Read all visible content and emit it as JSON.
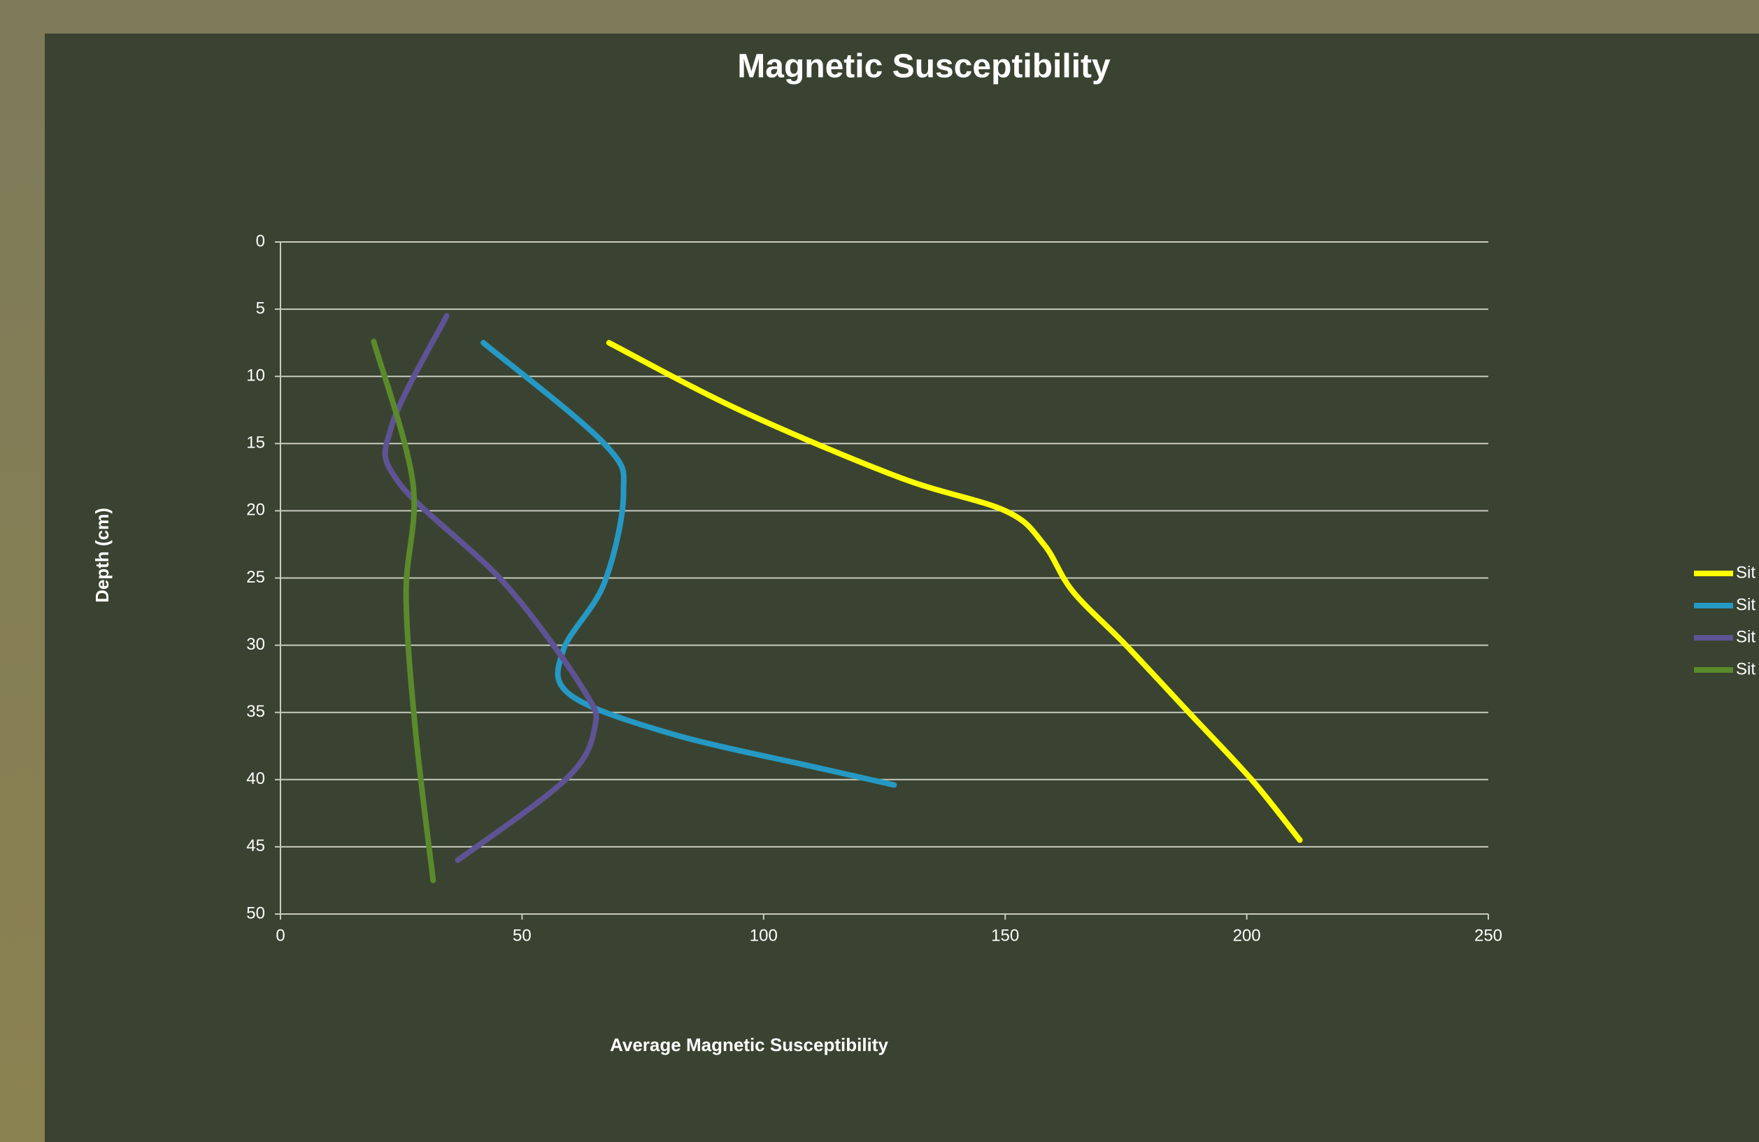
{
  "chart_data": {
    "type": "line",
    "title": "Magnetic Susceptibility",
    "x_label": "Average Magnetic Susceptibility",
    "y_label": "Depth (cm)",
    "xlim": [
      0,
      250
    ],
    "xticks": [
      0,
      50,
      100,
      150,
      200,
      250
    ],
    "ylim": [
      50,
      0
    ],
    "yticks": [
      0,
      5,
      10,
      15,
      20,
      25,
      30,
      35,
      40,
      45,
      50
    ],
    "grid": true,
    "legend": "right",
    "series": [
      {
        "name": "Sit",
        "color": "#ffff00",
        "x": [
          68,
          95,
          128,
          150,
          158,
          164,
          175,
          188,
          201,
          211
        ],
        "values": [
          7.5,
          12.5,
          17.5,
          20,
          22.5,
          26,
          30,
          35,
          40,
          44.5
        ]
      },
      {
        "name": "Sit",
        "color": "#2599c4",
        "x": [
          42,
          67,
          71,
          67,
          58.5,
          60,
          81,
          111,
          127
        ],
        "values": [
          7.5,
          15,
          18.7,
          25.4,
          30.4,
          33.7,
          36.6,
          39.1,
          40.4
        ]
      },
      {
        "name": "Sit",
        "color": "#5e5394",
        "x": [
          34.4,
          23,
          24.5,
          46.4,
          62.7,
          65,
          59,
          36.7
        ],
        "values": [
          5.5,
          13.7,
          17.9,
          25.4,
          33.3,
          36.2,
          40,
          46
        ]
      },
      {
        "name": "Sit",
        "color": "#5a8a2c",
        "x": [
          19.3,
          27.4,
          26,
          27.9,
          31.6
        ],
        "values": [
          7.4,
          17.9,
          26.2,
          36.2,
          47.5
        ]
      }
    ]
  }
}
